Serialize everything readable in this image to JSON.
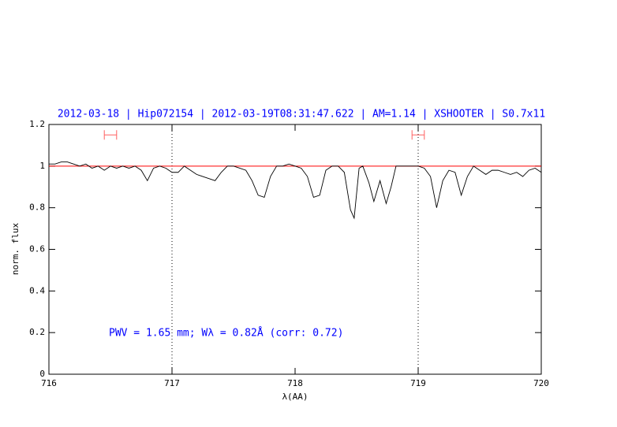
{
  "chart_data": {
    "type": "line",
    "title": "2012-03-18 | Hip072154 | 2012-03-19T08:31:47.622 | AM=1.14 | XSHOOTER | S0.7x11",
    "xlabel": "λ(AA)",
    "ylabel": "norm. flux",
    "annotation": "PWV = 1.65 mm; Wλ = 0.82Å (corr: 0.72)",
    "xlim": [
      716,
      720
    ],
    "ylim": [
      0,
      1.2
    ],
    "xticks": [
      716,
      717,
      718,
      719,
      720
    ],
    "yticks": [
      0,
      0.2,
      0.4,
      0.6,
      0.8,
      1,
      1.2
    ],
    "reference_line": {
      "value": 1,
      "color": "#ff0000"
    },
    "vlines": [
      717,
      719
    ],
    "ranges": [
      {
        "x": [
          716.45,
          716.55
        ],
        "y": 1.15
      },
      {
        "x": [
          718.95,
          719.05
        ],
        "y": 1.15
      }
    ],
    "range_color": "#ff6060",
    "series": [
      {
        "color": "#000000",
        "x": [
          716.0,
          716.05,
          716.1,
          716.15,
          716.2,
          716.25,
          716.3,
          716.35,
          716.4,
          716.45,
          716.5,
          716.55,
          716.6,
          716.65,
          716.7,
          716.75,
          716.8,
          716.85,
          716.9,
          716.95,
          717.0,
          717.05,
          717.1,
          717.15,
          717.2,
          717.25,
          717.3,
          717.35,
          717.4,
          717.45,
          717.5,
          717.55,
          717.6,
          717.65,
          717.7,
          717.75,
          717.8,
          717.85,
          717.9,
          717.95,
          718.0,
          718.05,
          718.1,
          718.15,
          718.2,
          718.25,
          718.3,
          718.35,
          718.4,
          718.45,
          718.48,
          718.52,
          718.55,
          718.6,
          718.64,
          718.69,
          718.74,
          718.78,
          718.82,
          718.9,
          718.95,
          719.0,
          719.05,
          719.1,
          719.15,
          719.2,
          719.25,
          719.3,
          719.35,
          719.4,
          719.45,
          719.5,
          719.55,
          719.6,
          719.65,
          719.7,
          719.75,
          719.8,
          719.85,
          719.9,
          719.95,
          720.0
        ],
        "values": [
          1.01,
          1.01,
          1.02,
          1.02,
          1.01,
          1.0,
          1.01,
          0.99,
          1.0,
          0.98,
          1.0,
          0.99,
          1.0,
          0.99,
          1.0,
          0.98,
          0.93,
          0.99,
          1.0,
          0.99,
          0.97,
          0.97,
          1.0,
          0.98,
          0.96,
          0.95,
          0.94,
          0.93,
          0.97,
          1.0,
          1.0,
          0.99,
          0.98,
          0.93,
          0.86,
          0.85,
          0.95,
          1.0,
          1.0,
          1.01,
          1.0,
          0.99,
          0.95,
          0.85,
          0.86,
          0.98,
          1.0,
          1.0,
          0.97,
          0.79,
          0.75,
          0.99,
          1.0,
          0.92,
          0.83,
          0.93,
          0.82,
          0.9,
          1.0,
          1.0,
          1.0,
          1.0,
          0.99,
          0.95,
          0.8,
          0.93,
          0.98,
          0.97,
          0.86,
          0.95,
          1.0,
          0.98,
          0.96,
          0.98,
          0.98,
          0.97,
          0.96,
          0.97,
          0.95,
          0.98,
          0.99,
          0.97
        ]
      }
    ],
    "title_color": "#0000ff"
  }
}
